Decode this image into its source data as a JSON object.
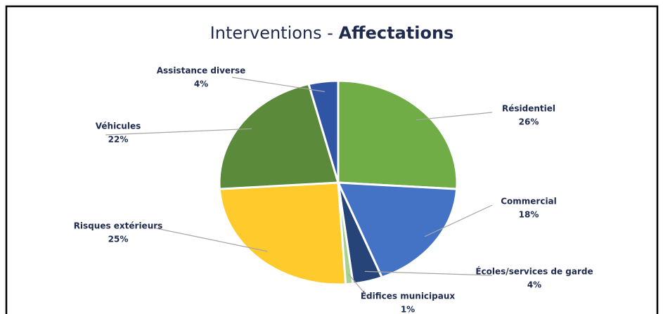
{
  "chart_data": {
    "type": "pie",
    "title": "Interventions -",
    "title_emphasis": "Affectations",
    "categories": [
      "Résidentiel",
      "Commercial",
      "Écoles/services de garde",
      "Édifices municipaux",
      "Risques extérieurs",
      "Véhicules",
      "Assistance diverse"
    ],
    "values": [
      26,
      18,
      4,
      1,
      25,
      22,
      4
    ],
    "value_labels": [
      "26%",
      "18%",
      "4%",
      "1%",
      "25%",
      "22%",
      "4%"
    ],
    "colors": [
      "#70ad47",
      "#4472c4",
      "#264478",
      "#a9d18e",
      "#ffca2c",
      "#5b8a3a",
      "#2f55a4"
    ]
  }
}
